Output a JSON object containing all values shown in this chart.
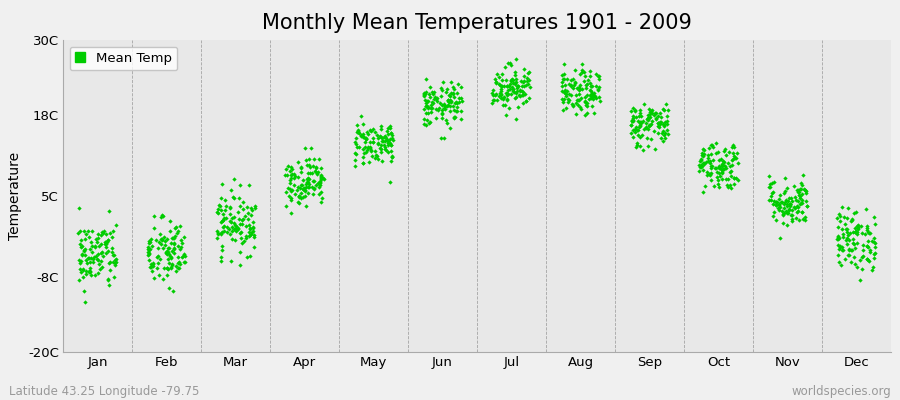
{
  "title": "Monthly Mean Temperatures 1901 - 2009",
  "ylabel": "Temperature",
  "yticks": [
    -20,
    -8,
    5,
    18,
    30
  ],
  "ytick_labels": [
    "-20C",
    "-8C",
    "5C",
    "18C",
    "30C"
  ],
  "ylim": [
    -20,
    30
  ],
  "months": [
    "Jan",
    "Feb",
    "Mar",
    "Apr",
    "May",
    "Jun",
    "Jul",
    "Aug",
    "Sep",
    "Oct",
    "Nov",
    "Dec"
  ],
  "month_means": [
    -4.5,
    -4.2,
    0.8,
    7.5,
    13.5,
    19.5,
    22.5,
    21.5,
    16.5,
    10.0,
    4.0,
    -2.0
  ],
  "month_stds": [
    2.8,
    2.8,
    2.5,
    2.0,
    1.8,
    1.8,
    1.8,
    1.8,
    1.8,
    2.0,
    2.0,
    2.5
  ],
  "n_years": 109,
  "marker_color": "#00cc00",
  "marker": "D",
  "marker_size": 2.2,
  "background_color": "#e8e8e8",
  "outer_background": "#f0f0f0",
  "grid_color": "#888888",
  "title_fontsize": 15,
  "axis_fontsize": 10,
  "tick_fontsize": 9.5,
  "legend_label": "Mean Temp",
  "subtitle_left": "Latitude 43.25 Longitude -79.75",
  "subtitle_right": "worldspecies.org",
  "subtitle_fontsize": 8.5
}
